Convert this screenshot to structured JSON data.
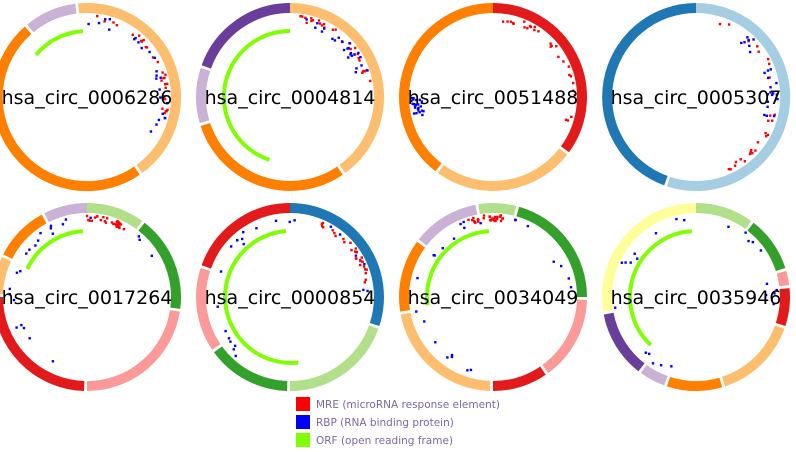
{
  "panels": [
    {
      "label": "hsa_circ_0006286"
    },
    {
      "label": "hsa_circ_0004814"
    },
    {
      "label": "hsa_circ_0051488"
    },
    {
      "label": "hsa_circ_0005307"
    },
    {
      "label": "hsa_circ_0017264"
    },
    {
      "label": "hsa_circ_0000854"
    },
    {
      "label": "hsa_circ_0034049"
    },
    {
      "label": "hsa_circ_0035946"
    }
  ],
  "legend": [
    {
      "label": "MRE (microRNA response element)",
      "color": "#ff0000"
    },
    {
      "label": "RBP (RNA binding protein)",
      "color": "#0000ff"
    },
    {
      "label": "ORF (open reading frame)",
      "color": "#7fff00"
    }
  ]
}
